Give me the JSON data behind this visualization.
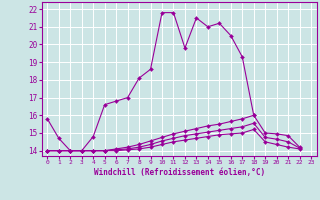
{
  "xlabel": "Windchill (Refroidissement éolien,°C)",
  "ylabel": "",
  "background_color": "#cce5e5",
  "grid_color": "#ffffff",
  "line_color": "#990099",
  "x_ticks": [
    0,
    1,
    2,
    3,
    4,
    5,
    6,
    7,
    8,
    9,
    10,
    11,
    12,
    13,
    14,
    15,
    16,
    17,
    18,
    19,
    20,
    21,
    22,
    23
  ],
  "y_ticks": [
    14,
    15,
    16,
    17,
    18,
    19,
    20,
    21,
    22
  ],
  "ylim": [
    13.7,
    22.4
  ],
  "xlim": [
    -0.5,
    23.5
  ],
  "series1_x": [
    0,
    1,
    2,
    3,
    4,
    5,
    6,
    7,
    8,
    9,
    10,
    11,
    12,
    13,
    14,
    15,
    16,
    17,
    18
  ],
  "series1_y": [
    15.8,
    14.7,
    14.0,
    14.0,
    14.8,
    16.6,
    16.8,
    17.0,
    18.1,
    18.6,
    21.8,
    21.8,
    19.8,
    21.5,
    21.0,
    21.2,
    20.5,
    19.3,
    16.0
  ],
  "series2_x": [
    0,
    1,
    2,
    3,
    4,
    5,
    6,
    7,
    8,
    9,
    10,
    11,
    12,
    13,
    14,
    15,
    16,
    17,
    18,
    19,
    20,
    21,
    22,
    23
  ],
  "series2_y": [
    14.0,
    14.0,
    14.0,
    14.0,
    14.0,
    14.0,
    14.1,
    14.2,
    14.35,
    14.55,
    14.75,
    14.95,
    15.1,
    15.25,
    15.4,
    15.5,
    15.65,
    15.8,
    16.0,
    15.0,
    14.95,
    14.85,
    14.2,
    null
  ],
  "series3_x": [
    0,
    1,
    2,
    3,
    4,
    5,
    6,
    7,
    8,
    9,
    10,
    11,
    12,
    13,
    14,
    15,
    16,
    17,
    18,
    19,
    20,
    21,
    22,
    23
  ],
  "series3_y": [
    14.0,
    14.0,
    14.0,
    14.0,
    14.0,
    14.0,
    14.05,
    14.1,
    14.2,
    14.35,
    14.55,
    14.7,
    14.85,
    14.95,
    15.05,
    15.15,
    15.25,
    15.35,
    15.55,
    14.75,
    14.65,
    14.5,
    14.15,
    null
  ],
  "series4_x": [
    0,
    1,
    2,
    3,
    4,
    5,
    6,
    7,
    8,
    9,
    10,
    11,
    12,
    13,
    14,
    15,
    16,
    17,
    18,
    19,
    20,
    21,
    22,
    23
  ],
  "series4_y": [
    14.0,
    14.0,
    14.0,
    14.0,
    14.0,
    14.0,
    14.0,
    14.05,
    14.1,
    14.2,
    14.35,
    14.5,
    14.6,
    14.7,
    14.8,
    14.9,
    14.95,
    15.0,
    15.2,
    14.5,
    14.35,
    14.2,
    14.1,
    null
  ],
  "marker": "D",
  "markersize": 2.0,
  "linewidth": 0.8
}
